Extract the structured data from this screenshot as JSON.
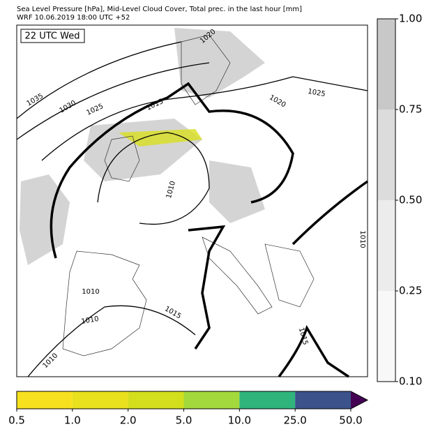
{
  "header": {
    "line1": "Sea Level Pressure [hPa], Mid-Level Cloud Cover, Total prec. in the last hour [mm]",
    "line2": "WRF 10.06.2019 18:00 UTC +52"
  },
  "map": {
    "time_label": "22 UTC Wed",
    "isobar_labels": [
      "1035",
      "1030",
      "1025",
      "1015",
      "1020",
      "1025",
      "1020",
      "1010",
      "1010",
      "1010",
      "1015",
      "1015",
      "1010",
      "1010"
    ]
  },
  "cloud_colorbar": {
    "labels": [
      "1.00",
      "0.75",
      "0.50",
      "0.25",
      "0.10"
    ],
    "colors": [
      "#c8c8c8",
      "#dcdcdc",
      "#ececec",
      "#f8f8f8"
    ]
  },
  "precip_colorbar": {
    "labels": [
      "0.5",
      "1.0",
      "2.0",
      "5.0",
      "10.0",
      "25.0",
      "50.0"
    ],
    "colors": [
      "#f7e11f",
      "#e9e01e",
      "#d3de1c",
      "#a3d93c",
      "#2fb47c",
      "#3b528b"
    ],
    "extend_color": "#440154"
  }
}
